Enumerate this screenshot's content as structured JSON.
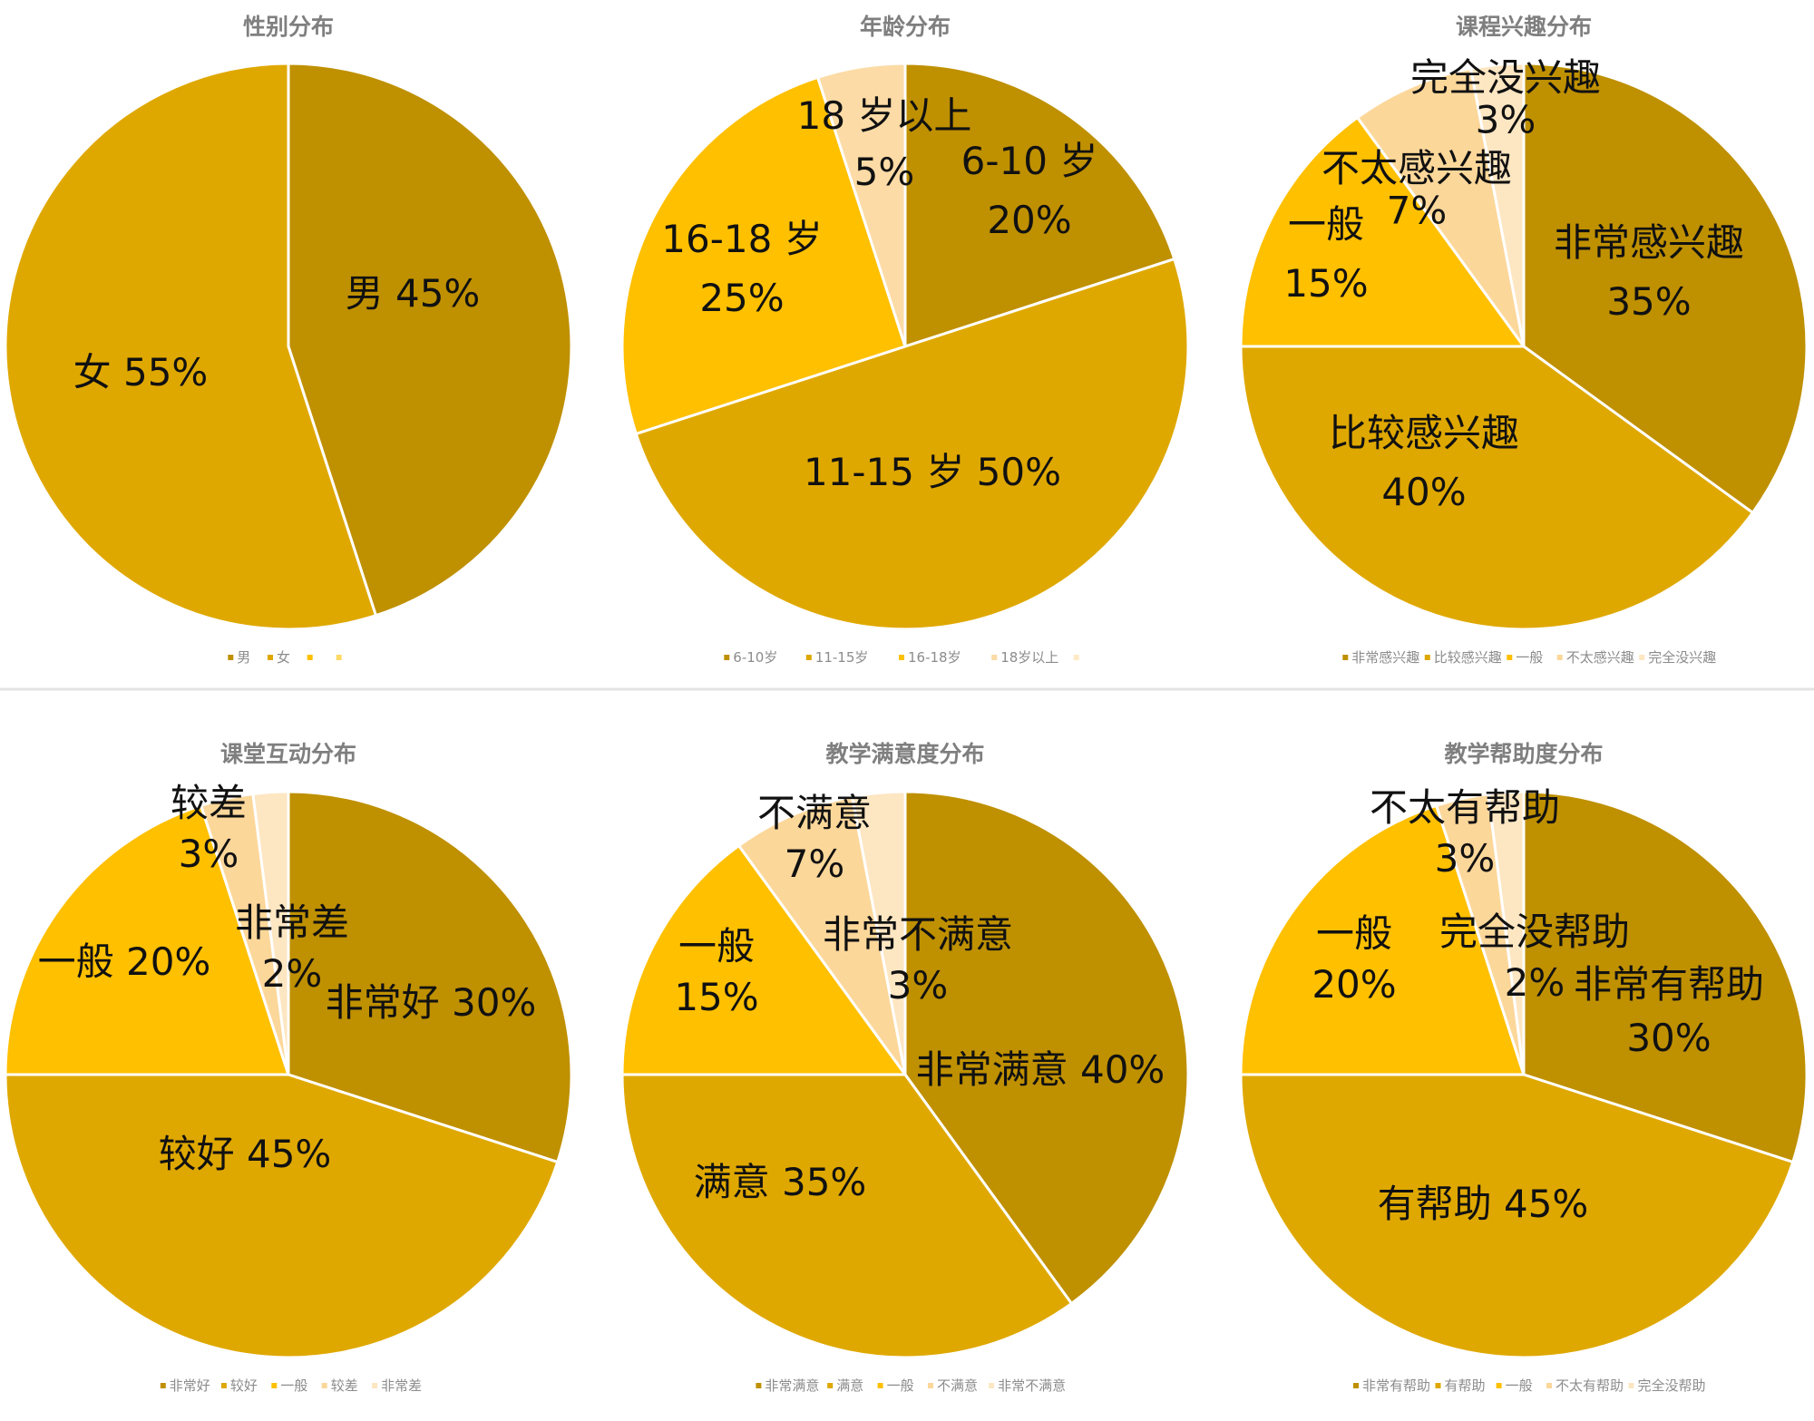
{
  "chart_data": [
    {
      "type": "pie",
      "title": "性别分布",
      "categories": [
        "男",
        "女"
      ],
      "values": [
        45,
        55
      ],
      "colors": [
        "#bf9000",
        "#dfa800"
      ],
      "labels": [
        [
          "男  45%"
        ],
        [
          "女  55%"
        ]
      ],
      "legend": [
        "男",
        "女",
        "",
        ""
      ],
      "legend_colors": [
        "#bf9000",
        "#dfa800",
        "#ffc000",
        "#ffd966"
      ]
    },
    {
      "type": "pie",
      "title": "年龄分布",
      "categories": [
        "6-10岁",
        "11-15岁",
        "16-18岁",
        "18岁以上"
      ],
      "values": [
        20,
        50,
        25,
        5
      ],
      "colors": [
        "#bf9000",
        "#dfa800",
        "#ffc000",
        "#fcdba6"
      ],
      "labels": [
        [
          "6-10 岁",
          "20%"
        ],
        [
          "11-15 岁  50%"
        ],
        [
          "16-18 岁",
          "25%"
        ],
        [
          "18 岁以上",
          "5%"
        ]
      ],
      "legend": [
        "6-10岁",
        "11-15岁",
        "16-18岁",
        "18岁以上",
        ""
      ],
      "legend_colors": [
        "#bf9000",
        "#dfa800",
        "#ffc000",
        "#fcdba6",
        "#fde9c4"
      ]
    },
    {
      "type": "pie",
      "title": "课程兴趣分布",
      "categories": [
        "非常感兴趣",
        "比较感兴趣",
        "一般",
        "不太感兴趣",
        "完全没兴趣"
      ],
      "values": [
        35,
        40,
        15,
        7,
        3
      ],
      "colors": [
        "#bf9000",
        "#dfa800",
        "#ffc000",
        "#fcd79a",
        "#fde6c2"
      ],
      "labels": [
        [
          "非常感兴趣",
          "35%"
        ],
        [
          "比较感兴趣",
          "40%"
        ],
        [
          "一般",
          "15%"
        ],
        [
          "不太感兴趣",
          "7%"
        ],
        [
          "完全没兴趣",
          "3%"
        ]
      ],
      "legend": [
        "非常感兴趣",
        "比较感兴趣",
        "一般",
        "不太感兴趣",
        "完全没兴趣"
      ],
      "legend_colors": [
        "#bf9000",
        "#dfa800",
        "#ffc000",
        "#fcd79a",
        "#fde6c2"
      ]
    },
    {
      "type": "pie",
      "title": "课堂互动分布",
      "categories": [
        "非常好",
        "较好",
        "一般",
        "较差",
        "非常差"
      ],
      "values": [
        30,
        45,
        20,
        3,
        2
      ],
      "colors": [
        "#bf9000",
        "#dfa800",
        "#ffc000",
        "#fcd79a",
        "#fde6c2"
      ],
      "labels": [
        [
          "非常好 30%"
        ],
        [
          "较好 45%"
        ],
        [
          "一般 20%"
        ],
        [
          "较差",
          "3%"
        ],
        [
          "非常差",
          "2%"
        ]
      ],
      "legend": [
        "非常好",
        "较好",
        "一般",
        "较差",
        "非常差"
      ],
      "legend_colors": [
        "#bf9000",
        "#dfa800",
        "#ffc000",
        "#fcd79a",
        "#fde6c2"
      ]
    },
    {
      "type": "pie",
      "title": "教学满意度分布",
      "categories": [
        "非常满意",
        "满意",
        "一般",
        "不满意",
        "非常不满意"
      ],
      "values": [
        40,
        35,
        15,
        7,
        3
      ],
      "colors": [
        "#bf9000",
        "#dfa800",
        "#ffc000",
        "#fcd79a",
        "#fde6c2"
      ],
      "labels": [
        [
          "非常满意  40%"
        ],
        [
          "满意  35%"
        ],
        [
          "一般",
          "15%"
        ],
        [
          "不满意",
          "7%"
        ],
        [
          "非常不满意",
          "3%"
        ]
      ],
      "legend": [
        "非常满意",
        "满意",
        "一般",
        "不满意",
        "非常不满意"
      ],
      "legend_colors": [
        "#bf9000",
        "#dfa800",
        "#ffc000",
        "#fcd79a",
        "#fde6c2"
      ]
    },
    {
      "type": "pie",
      "title": "教学帮助度分布",
      "categories": [
        "非常有帮助",
        "有帮助",
        "一般",
        "不太有帮助",
        "完全没帮助"
      ],
      "values": [
        30,
        45,
        20,
        3,
        2
      ],
      "colors": [
        "#bf9000",
        "#dfa800",
        "#ffc000",
        "#fcd79a",
        "#fde6c2"
      ],
      "labels": [
        [
          "非常有帮助",
          "30%"
        ],
        [
          "有帮助  45%"
        ],
        [
          "一般",
          "20%"
        ],
        [
          "不太有帮助",
          "3%"
        ],
        [
          "完全没帮助",
          "2%"
        ]
      ],
      "legend": [
        "非常有帮助",
        "有帮助",
        "一般",
        "不太有帮助",
        "完全没帮助"
      ],
      "legend_colors": [
        "#bf9000",
        "#dfa800",
        "#ffc000",
        "#fcd79a",
        "#fde6c2"
      ]
    }
  ]
}
